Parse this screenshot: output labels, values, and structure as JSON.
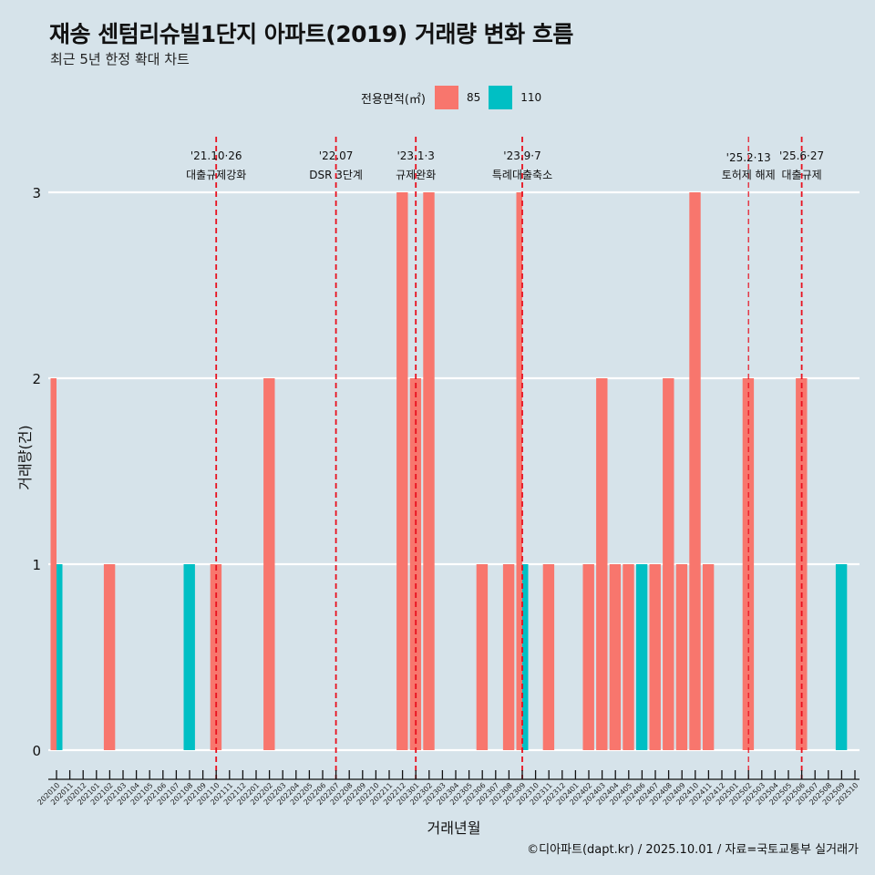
{
  "header": {
    "title": "재송 센텀리슈빌1단지 아파트(2019) 거래량 변화 흐름",
    "subtitle": "최근 5년 한정 확대 차트"
  },
  "legend": {
    "title": "전용면적(㎡)",
    "items": [
      {
        "label": "85",
        "color": "#F8766D"
      },
      {
        "label": "110",
        "color": "#00BFC4"
      }
    ]
  },
  "caption": "©디아파트(dapt.kr) / 2025.10.01 / 자료=국토교통부 실거래가",
  "chart_data": {
    "type": "bar",
    "title": "재송 센텀리슈빌1단지 아파트(2019) 거래량 변화 흐름",
    "subtitle": "최근 5년 한정 확대 차트",
    "xlabel": "거래년월",
    "ylabel": "거래량(건)",
    "ylim": [
      0,
      3
    ],
    "yticks": [
      0,
      1,
      2,
      3
    ],
    "grid": "horizontal",
    "legend_position": "top",
    "categories": [
      "202010",
      "202011",
      "202012",
      "202101",
      "202102",
      "202103",
      "202104",
      "202105",
      "202106",
      "202107",
      "202108",
      "202109",
      "202110",
      "202111",
      "202112",
      "202201",
      "202202",
      "202203",
      "202204",
      "202205",
      "202206",
      "202207",
      "202208",
      "202209",
      "202210",
      "202211",
      "202212",
      "202301",
      "202302",
      "202303",
      "202304",
      "202305",
      "202306",
      "202307",
      "202308",
      "202309",
      "202310",
      "202311",
      "202312",
      "202401",
      "202402",
      "202403",
      "202404",
      "202405",
      "202406",
      "202407",
      "202408",
      "202409",
      "202410",
      "202411",
      "202412",
      "202501",
      "202502",
      "202503",
      "202504",
      "202505",
      "202506",
      "202507",
      "202508",
      "202509",
      "202510"
    ],
    "series": [
      {
        "name": "85",
        "color": "#F8766D",
        "values": {
          "202010": 2,
          "202102": 1,
          "202110": 1,
          "202202": 2,
          "202212": 3,
          "202301": 2,
          "202302": 3,
          "202306": 1,
          "202308": 1,
          "202309": 3,
          "202311": 1,
          "202402": 1,
          "202403": 2,
          "202404": 1,
          "202405": 1,
          "202407": 1,
          "202408": 2,
          "202409": 1,
          "202410": 3,
          "202411": 1,
          "202502": 2,
          "202506": 2
        }
      },
      {
        "name": "110",
        "color": "#00BFC4",
        "values": {
          "202010": 1,
          "202108": 1,
          "202309": 1,
          "202406": 1,
          "202509": 1
        }
      }
    ],
    "annotations": [
      {
        "at": "202110",
        "date": "'21.10·26",
        "label": "대출규제강화"
      },
      {
        "at": "202207",
        "date": "'22.07",
        "label": "DSR 3단계"
      },
      {
        "at": "202301",
        "date": "'23.1·3",
        "label": "규제완화"
      },
      {
        "at": "202309",
        "date": "'23.9·7",
        "label": "특례대출축소"
      },
      {
        "at": "202502",
        "date": "'25.2·13",
        "label": "토허제 해제"
      },
      {
        "at": "202506",
        "date": "'25.6·27",
        "label": "대출규제"
      }
    ],
    "annotation_line_color": "#E8101E"
  }
}
